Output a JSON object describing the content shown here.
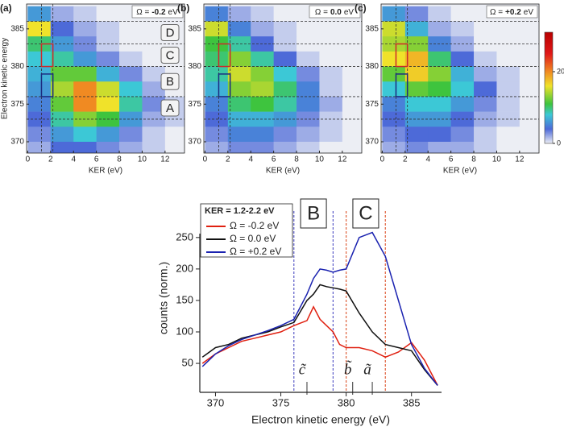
{
  "chart_data": [
    {
      "type": "heatmap",
      "panel_label": "(a)",
      "omega": {
        "symbol": "Ω =",
        "value": "-0.2",
        "unit": "eV"
      },
      "xlabel": "KER (eV)",
      "ylabel": "Electron kinetic energy",
      "xlim": [
        -0.1,
        13.7
      ],
      "ylim": [
        368.5,
        388.3
      ],
      "xticks": [
        0,
        2,
        4,
        6,
        8,
        10,
        12
      ],
      "yticks": [
        370,
        375,
        380,
        385
      ],
      "x_edges": [
        0,
        2,
        4,
        6,
        8,
        10,
        12,
        14
      ],
      "y_edges": [
        388,
        386,
        384,
        382,
        380,
        378,
        376,
        374,
        372,
        370,
        368,
        366
      ],
      "z": [
        [
          6,
          2,
          1,
          0,
          0,
          0,
          0
        ],
        [
          16,
          4,
          2,
          1,
          0,
          0,
          0
        ],
        [
          10,
          6,
          3,
          1,
          0,
          0,
          0
        ],
        [
          8,
          9,
          6,
          3,
          1,
          0,
          0
        ],
        [
          7,
          12,
          12,
          7,
          3,
          1,
          0
        ],
        [
          6,
          14,
          20,
          15,
          8,
          2,
          0
        ],
        [
          5,
          12,
          20,
          16,
          9,
          3,
          1
        ],
        [
          4,
          9,
          13,
          11,
          6,
          2,
          1
        ],
        [
          3,
          6,
          8,
          6,
          3,
          1,
          0
        ],
        [
          2,
          4,
          4,
          3,
          2,
          1,
          0
        ],
        [
          1,
          2,
          2,
          1,
          1,
          0,
          0
        ]
      ],
      "hlines": [
        386,
        383,
        380,
        376,
        373
      ],
      "vlines": [
        1.2,
        2.2
      ],
      "region_labels": [
        "D",
        "C",
        "B",
        "A"
      ],
      "boxes": [
        {
          "x": [
            1.2,
            2.2
          ],
          "y": [
            380,
            383
          ],
          "color": "#cc2a2a"
        },
        {
          "x": [
            1.2,
            2.2
          ],
          "y": [
            376,
            379
          ],
          "color": "#1c2c80"
        }
      ]
    },
    {
      "type": "heatmap",
      "panel_label": "(b)",
      "omega": {
        "symbol": "Ω =",
        "value": "0.0",
        "unit": "eV"
      },
      "xlabel": "KER (eV)",
      "xlim": [
        -0.1,
        13.7
      ],
      "ylim": [
        368.5,
        388.3
      ],
      "xticks": [
        0,
        2,
        4,
        6,
        8,
        10,
        12
      ],
      "yticks": [
        370,
        375,
        380,
        385
      ],
      "x_edges": [
        0,
        2,
        4,
        6,
        8,
        10,
        12,
        14
      ],
      "y_edges": [
        388,
        386,
        384,
        382,
        380,
        378,
        376,
        374,
        372,
        370,
        368,
        366
      ],
      "z": [
        [
          5,
          2,
          1,
          0,
          0,
          0,
          0
        ],
        [
          15,
          5,
          2,
          1,
          0,
          0,
          0
        ],
        [
          11,
          9,
          4,
          1,
          0,
          0,
          0
        ],
        [
          10,
          13,
          9,
          4,
          1,
          0,
          0
        ],
        [
          9,
          15,
          13,
          8,
          3,
          1,
          0
        ],
        [
          7,
          13,
          14,
          10,
          5,
          1,
          0
        ],
        [
          5,
          10,
          11,
          9,
          5,
          2,
          0
        ],
        [
          4,
          7,
          7,
          6,
          3,
          1,
          0
        ],
        [
          3,
          5,
          5,
          3,
          2,
          1,
          0
        ],
        [
          2,
          3,
          3,
          2,
          1,
          0,
          0
        ],
        [
          1,
          2,
          1,
          1,
          0,
          0,
          0
        ]
      ],
      "hlines": [
        386,
        383,
        380,
        376,
        373
      ],
      "vlines": [
        1.2,
        2.2
      ],
      "boxes": [
        {
          "x": [
            1.2,
            2.2
          ],
          "y": [
            380,
            383
          ],
          "color": "#cc2a2a"
        },
        {
          "x": [
            1.2,
            2.2
          ],
          "y": [
            376,
            379
          ],
          "color": "#1c2c80"
        }
      ]
    },
    {
      "type": "heatmap",
      "panel_label": "(c)",
      "omega": {
        "symbol": "Ω =",
        "value": "+0.2",
        "unit": "eV"
      },
      "xlabel": "KER (eV)",
      "xlim": [
        -0.1,
        13.7
      ],
      "ylim": [
        368.5,
        388.3
      ],
      "xticks": [
        0,
        2,
        4,
        6,
        8,
        10,
        12
      ],
      "yticks": [
        370,
        375,
        380,
        385
      ],
      "x_edges": [
        0,
        2,
        4,
        6,
        8,
        10,
        12,
        14
      ],
      "y_edges": [
        388,
        386,
        384,
        382,
        380,
        378,
        376,
        374,
        372,
        370,
        368,
        366
      ],
      "z": [
        [
          6,
          3,
          1,
          0,
          0,
          0,
          0
        ],
        [
          15,
          7,
          2,
          1,
          0,
          0,
          0
        ],
        [
          14,
          13,
          5,
          2,
          0,
          0,
          0
        ],
        [
          16,
          18,
          10,
          4,
          1,
          0,
          0
        ],
        [
          12,
          17,
          13,
          7,
          2,
          1,
          0
        ],
        [
          8,
          12,
          11,
          8,
          4,
          1,
          0
        ],
        [
          5,
          8,
          8,
          6,
          3,
          1,
          0
        ],
        [
          4,
          6,
          6,
          4,
          2,
          1,
          0
        ],
        [
          3,
          4,
          4,
          3,
          1,
          0,
          0
        ],
        [
          2,
          3,
          2,
          2,
          1,
          0,
          0
        ],
        [
          1,
          1,
          1,
          1,
          0,
          0,
          0
        ]
      ],
      "hlines": [
        386,
        383,
        380,
        376,
        373
      ],
      "vlines": [
        1.2,
        2.2
      ],
      "boxes": [
        {
          "x": [
            1.2,
            2.2
          ],
          "y": [
            380,
            383
          ],
          "color": "#cc2a2a"
        },
        {
          "x": [
            1.2,
            2.2
          ],
          "y": [
            376,
            379
          ],
          "color": "#1c2c80"
        }
      ],
      "colorbar": {
        "lim": [
          0,
          31
        ],
        "ticks": [
          0,
          20
        ]
      },
      "colormap": [
        [
          0,
          "#eceef4"
        ],
        [
          4,
          "#4d6ad8"
        ],
        [
          8,
          "#3cc8d6"
        ],
        [
          11,
          "#3ec43e"
        ],
        [
          16,
          "#f0e22a"
        ],
        [
          20,
          "#f08a22"
        ],
        [
          25,
          "#e01818"
        ],
        [
          31,
          "#b80000"
        ]
      ]
    },
    {
      "type": "line",
      "xlabel": "Electron kinetic energy (eV)",
      "ylabel": "counts (norm.)",
      "legend_title": "KER = 1.2-2.2 eV",
      "xlim": [
        368.8,
        387.3
      ],
      "ylim": [
        4,
        292
      ],
      "xticks": [
        370,
        375,
        380,
        385
      ],
      "yticks": [
        50,
        100,
        150,
        200,
        250
      ],
      "x": [
        369,
        370,
        371,
        372,
        373,
        374,
        375,
        376,
        377,
        377.5,
        378,
        378.5,
        379,
        379.5,
        380,
        381,
        382,
        383,
        384,
        385,
        386,
        387
      ],
      "series": [
        {
          "name": "Ω = -0.2 eV",
          "color": "#e02010",
          "values": [
            50,
            65,
            75,
            85,
            90,
            95,
            100,
            110,
            118,
            140,
            120,
            110,
            100,
            80,
            75,
            75,
            70,
            60,
            68,
            83,
            55,
            15
          ]
        },
        {
          "name": "Ω = 0.0 eV",
          "color": "#111111",
          "values": [
            60,
            75,
            80,
            90,
            95,
            100,
            108,
            115,
            150,
            160,
            175,
            172,
            170,
            168,
            165,
            130,
            100,
            80,
            75,
            70,
            40,
            15
          ]
        },
        {
          "name": "Ω = +0.2 eV",
          "color": "#1a22b0",
          "values": [
            45,
            65,
            78,
            88,
            95,
            102,
            110,
            120,
            160,
            185,
            200,
            198,
            195,
            198,
            200,
            250,
            258,
            220,
            150,
            80,
            42,
            15
          ]
        }
      ],
      "vlines": [
        {
          "x": 376,
          "color": "#5a5ac8"
        },
        {
          "x": 379,
          "color": "#5a5ac8"
        },
        {
          "x": 380,
          "color": "#e0603a"
        },
        {
          "x": 383,
          "color": "#e0603a"
        }
      ],
      "region_labels": [
        {
          "text": "B",
          "x": [
            376,
            379
          ]
        },
        {
          "text": "C",
          "x": [
            380,
            383
          ]
        }
      ],
      "peak_markers": [
        {
          "label": "c̃",
          "x": 377
        },
        {
          "label": "b̃",
          "x": 380.5
        },
        {
          "label": "ã",
          "x": 382
        }
      ]
    }
  ]
}
